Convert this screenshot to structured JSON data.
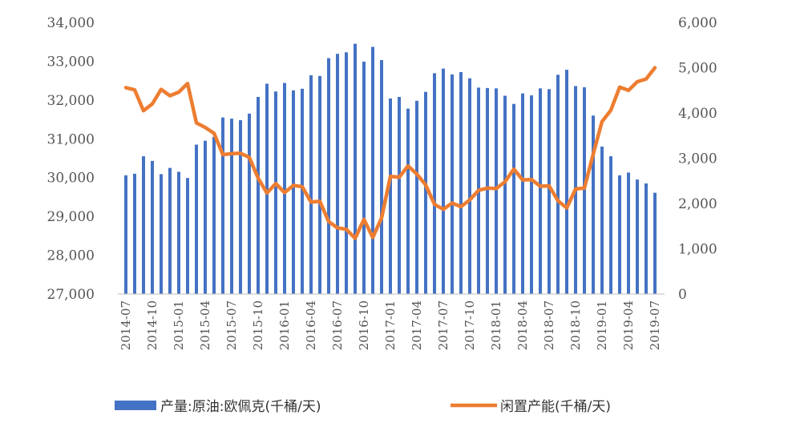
{
  "chart_data": {
    "type": "bar+line",
    "title": "",
    "x_tick_labels": [
      "2014-07",
      "2014-10",
      "2015-01",
      "2015-04",
      "2015-07",
      "2015-10",
      "2016-01",
      "2016-04",
      "2016-07",
      "2016-10",
      "2017-01",
      "2017-04",
      "2017-07",
      "2017-10",
      "2018-01",
      "2018-04",
      "2018-07",
      "2018-10",
      "2019-01",
      "2019-04",
      "2019-07"
    ],
    "x": [
      "2014-07",
      "2014-08",
      "2014-09",
      "2014-10",
      "2014-11",
      "2014-12",
      "2015-01",
      "2015-02",
      "2015-03",
      "2015-04",
      "2015-05",
      "2015-06",
      "2015-07",
      "2015-08",
      "2015-09",
      "2015-10",
      "2015-11",
      "2015-12",
      "2016-01",
      "2016-02",
      "2016-03",
      "2016-04",
      "2016-05",
      "2016-06",
      "2016-07",
      "2016-08",
      "2016-09",
      "2016-10",
      "2016-11",
      "2016-12",
      "2017-01",
      "2017-02",
      "2017-03",
      "2017-04",
      "2017-05",
      "2017-06",
      "2017-07",
      "2017-08",
      "2017-09",
      "2017-10",
      "2017-11",
      "2017-12",
      "2018-01",
      "2018-02",
      "2018-03",
      "2018-04",
      "2018-05",
      "2018-06",
      "2018-07",
      "2018-08",
      "2018-09",
      "2018-10",
      "2018-11",
      "2018-12",
      "2019-01",
      "2019-02",
      "2019-03",
      "2019-04",
      "2019-05",
      "2019-06",
      "2019-07"
    ],
    "y_left": {
      "min": 27000,
      "max": 34000,
      "ticks": [
        "27,000",
        "28,000",
        "29,000",
        "30,000",
        "31,000",
        "32,000",
        "33,000",
        "34,000"
      ],
      "tick_values": [
        27000,
        28000,
        29000,
        30000,
        31000,
        32000,
        33000,
        34000
      ]
    },
    "y_right": {
      "min": 0,
      "max": 6000,
      "ticks": [
        "0",
        "1,000",
        "2,000",
        "3,000",
        "4,000",
        "5,000",
        "6,000"
      ],
      "tick_values": [
        0,
        1000,
        2000,
        3000,
        4000,
        5000,
        6000
      ]
    },
    "series": [
      {
        "name": "产量:原油:欧佩克(千桶/天)",
        "type": "bar",
        "axis": "left",
        "color": "#4472C4",
        "values": [
          30060,
          30100,
          30550,
          30430,
          30090,
          30250,
          30150,
          29990,
          30850,
          30950,
          31050,
          31550,
          31520,
          31480,
          31650,
          32080,
          32420,
          32220,
          32440,
          32250,
          32290,
          32640,
          32620,
          33080,
          33190,
          33230,
          33450,
          32990,
          33370,
          33030,
          32040,
          32080,
          31780,
          31980,
          32210,
          32690,
          32810,
          32660,
          32720,
          32560,
          32320,
          32310,
          32300,
          32110,
          31900,
          32170,
          32120,
          32300,
          32280,
          32650,
          32780,
          32360,
          32330,
          31600,
          30800,
          30550,
          30060,
          30130,
          29950,
          29850,
          29610
        ]
      },
      {
        "name": "闲置产能(千桶/天)",
        "type": "line",
        "axis": "right",
        "color": "#ED7D31",
        "values": [
          4560,
          4510,
          4050,
          4200,
          4520,
          4380,
          4460,
          4650,
          3780,
          3680,
          3550,
          3080,
          3100,
          3110,
          3020,
          2560,
          2230,
          2440,
          2240,
          2400,
          2370,
          2030,
          2050,
          1600,
          1460,
          1430,
          1230,
          1650,
          1250,
          1680,
          2600,
          2580,
          2830,
          2650,
          2410,
          1980,
          1870,
          2010,
          1930,
          2080,
          2290,
          2340,
          2330,
          2480,
          2760,
          2520,
          2530,
          2380,
          2390,
          2060,
          1900,
          2320,
          2340,
          3090,
          3810,
          4060,
          4570,
          4500,
          4690,
          4750,
          5000
        ]
      }
    ],
    "legend": {
      "position": "bottom",
      "items": [
        "产量:原油:欧佩克(千桶/天)",
        "闲置产能(千桶/天)"
      ]
    },
    "grid": false
  }
}
